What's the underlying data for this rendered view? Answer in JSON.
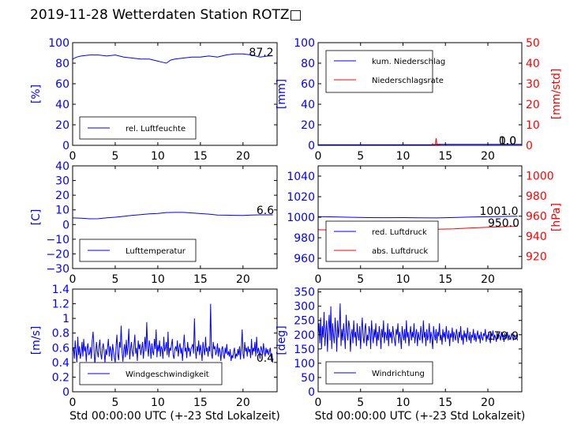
{
  "page": {
    "title": "2019-11-28 Wetterdaten Station ROTZ□"
  },
  "colors": {
    "left_axis": "#0000ff",
    "right_axis": "#ff0000",
    "frame": "#000000"
  },
  "chart_data": [
    {
      "type": "line",
      "xlim": [
        0,
        24
      ],
      "xticks": [
        0,
        5,
        10,
        15,
        20
      ],
      "xlabel": "",
      "ylim": [
        0,
        100
      ],
      "yticks": [
        0,
        20,
        40,
        60,
        80,
        100
      ],
      "ylabel": "[%]",
      "grid": false,
      "legend_position": "lower-left",
      "last_value_label": "87.2",
      "series": [
        {
          "name": "rel. Luftfeuchte",
          "color": "#0000ff",
          "axis": "left",
          "x": [
            0,
            0.5,
            1,
            2,
            3,
            4,
            5,
            6,
            7,
            8,
            9,
            10,
            10.5,
            11,
            11.5,
            12,
            13,
            14,
            15,
            16,
            17,
            18,
            19,
            20,
            21,
            22,
            23,
            23.5
          ],
          "y": [
            84,
            86,
            87,
            88,
            88,
            87,
            88,
            86,
            85,
            84,
            84,
            82,
            81,
            80,
            83,
            84,
            85,
            86,
            86,
            87,
            86,
            88,
            89,
            89,
            88,
            86,
            87,
            87.2
          ]
        }
      ]
    },
    {
      "type": "line",
      "xlim": [
        0,
        24
      ],
      "xticks": [
        0,
        5,
        10,
        15,
        20
      ],
      "xlabel": "",
      "ylim": [
        0,
        100
      ],
      "yticks": [
        0,
        20,
        40,
        60,
        80,
        100
      ],
      "ylabel": "[mm]",
      "y2lim": [
        0,
        50
      ],
      "y2ticks": [
        0,
        10,
        20,
        30,
        40,
        50
      ],
      "y2label": "[mm/std]",
      "grid": false,
      "legend_position": "upper-left",
      "last_value_labels": [
        "1.0",
        "0.0"
      ],
      "series": [
        {
          "name": "kum. Niederschlag",
          "color": "#0000ff",
          "axis": "left",
          "x": [
            0,
            13.5,
            14,
            24
          ],
          "y": [
            0.5,
            0.5,
            1.0,
            1.0
          ]
        },
        {
          "name": "Niederschlagsrate",
          "color": "#ff0000",
          "axis": "right",
          "x": [
            0,
            13.4,
            13.5,
            13.6,
            13.8,
            13.9,
            14.0,
            14.1,
            14.3,
            14.4,
            24
          ],
          "y": [
            0,
            0,
            0.8,
            0,
            0,
            3.5,
            0.4,
            0,
            0.6,
            0,
            0
          ]
        }
      ]
    },
    {
      "type": "line",
      "xlim": [
        0,
        24
      ],
      "xticks": [
        0,
        5,
        10,
        15,
        20
      ],
      "xlabel": "",
      "ylim": [
        -30,
        40
      ],
      "yticks": [
        -30,
        -20,
        -10,
        0,
        10,
        20,
        30,
        40
      ],
      "ylabel": "[C]",
      "grid": false,
      "legend_position": "lower-left",
      "last_value_label": "6.6",
      "series": [
        {
          "name": "Lufttemperatur",
          "color": "#0000ff",
          "axis": "left",
          "x": [
            0,
            1,
            2,
            3,
            4,
            5,
            6,
            7,
            8,
            9,
            10,
            11,
            12,
            13,
            14,
            15,
            16,
            17,
            18,
            19,
            20,
            21,
            22,
            23,
            23.5
          ],
          "y": [
            4.5,
            4.3,
            3.9,
            4.0,
            4.6,
            5.0,
            5.6,
            6.3,
            6.8,
            7.3,
            7.6,
            8.2,
            8.3,
            8.3,
            7.9,
            7.5,
            7.1,
            6.5,
            6.4,
            6.3,
            6.2,
            6.5,
            6.6,
            6.6,
            6.6
          ]
        }
      ]
    },
    {
      "type": "line",
      "xlim": [
        0,
        24
      ],
      "xticks": [
        0,
        5,
        10,
        15,
        20
      ],
      "xlabel": "",
      "ylim": [
        950,
        1050
      ],
      "yticks": [
        960,
        980,
        1000,
        1020,
        1040
      ],
      "ylabel": "",
      "y2lim": [
        908,
        1010
      ],
      "y2ticks": [
        920,
        940,
        960,
        980,
        1000
      ],
      "y2label": "[hPa]",
      "grid": false,
      "legend_position": "lower-left",
      "last_value_labels": [
        "1001.0",
        "950.0"
      ],
      "series": [
        {
          "name": "red. Luftdruck",
          "color": "#0000ff",
          "axis": "left",
          "x": [
            0,
            2,
            4,
            6,
            8,
            10,
            12,
            14,
            16,
            18,
            20,
            22,
            23.5
          ],
          "y": [
            1000.6,
            1000.3,
            999.9,
            999.6,
            999.5,
            999.6,
            999.4,
            999.3,
            999.7,
            1000.2,
            1000.5,
            1000.8,
            1001.0
          ]
        },
        {
          "name": "abs. Luftdruck",
          "color": "#ff0000",
          "axis": "right",
          "x": [
            0,
            2,
            4,
            6,
            8,
            10,
            12,
            14,
            16,
            18,
            20,
            22,
            23.5
          ],
          "y": [
            946.5,
            946.2,
            946.0,
            946.0,
            946.0,
            946.5,
            946.7,
            947.0,
            947.5,
            948.3,
            949.0,
            949.6,
            950.0
          ]
        }
      ]
    },
    {
      "type": "line",
      "xlim": [
        0,
        24
      ],
      "xticks": [
        0,
        5,
        10,
        15,
        20
      ],
      "xlabel": "Std 00:00:00 UTC (+-23 Std Lokalzeit)",
      "ylim": [
        0,
        1.4
      ],
      "yticks": [
        0.0,
        0.2,
        0.4,
        0.6,
        0.8,
        1.0,
        1.2,
        1.4
      ],
      "ylabel": "[m/s]",
      "grid": false,
      "legend_position": "lower-left",
      "last_value_label": "0.4",
      "series": [
        {
          "name": "Windgeschwindigkeit",
          "color": "#0000ff",
          "axis": "left",
          "x_start": 0,
          "x_step": 0.1,
          "y": [
            0.55,
            0.6,
            0.45,
            0.7,
            0.55,
            0.4,
            0.75,
            0.5,
            0.62,
            0.45,
            0.53,
            0.68,
            0.48,
            0.72,
            0.55,
            0.62,
            0.41,
            0.58,
            0.66,
            0.5,
            0.53,
            0.61,
            0.45,
            0.7,
            0.82,
            0.6,
            0.38,
            0.5,
            0.68,
            0.55,
            0.47,
            0.62,
            0.71,
            0.52,
            0.44,
            0.6,
            0.66,
            0.55,
            0.4,
            0.58,
            0.5,
            0.6,
            0.72,
            0.48,
            0.62,
            0.56,
            0.42,
            0.65,
            0.55,
            0.46,
            0.4,
            0.62,
            0.78,
            0.51,
            0.43,
            0.68,
            0.6,
            0.9,
            0.55,
            0.41,
            0.57,
            0.65,
            0.47,
            0.71,
            0.5,
            0.62,
            0.86,
            0.44,
            0.58,
            0.68,
            0.55,
            0.48,
            0.63,
            0.78,
            0.52,
            0.6,
            0.42,
            0.7,
            0.58,
            0.65,
            0.5,
            0.58,
            0.68,
            0.45,
            0.6,
            0.75,
            0.55,
            0.95,
            0.6,
            0.48,
            0.7,
            0.62,
            0.45,
            0.66,
            0.55,
            0.5,
            0.72,
            0.58,
            0.85,
            0.47,
            0.64,
            0.55,
            0.7,
            0.48,
            0.62,
            0.58,
            0.45,
            0.75,
            0.55,
            0.6,
            0.68,
            0.5,
            0.82,
            0.47,
            0.6,
            0.56,
            0.64,
            0.72,
            0.5,
            0.45,
            0.58,
            0.62,
            0.55,
            0.7,
            0.48,
            0.6,
            0.66,
            0.52,
            0.6,
            0.42,
            0.62,
            0.78,
            0.55,
            0.6,
            0.46,
            0.68,
            0.55,
            0.6,
            0.48,
            0.58,
            0.62,
            0.65,
            0.52,
            1.0,
            0.58,
            0.45,
            0.62,
            0.55,
            0.7,
            0.5,
            0.64,
            0.55,
            0.42,
            0.68,
            0.58,
            0.5,
            0.75,
            0.55,
            0.6,
            0.48,
            0.62,
            0.55,
            1.2,
            0.52,
            0.45,
            0.68,
            0.58,
            0.62,
            0.5,
            0.55,
            0.66,
            0.48,
            0.6,
            0.55,
            0.42,
            0.58,
            0.62,
            0.5,
            0.45,
            0.6,
            0.52,
            0.65,
            0.5,
            0.55,
            0.48,
            0.58,
            0.42,
            0.5,
            0.46,
            0.55,
            0.6,
            0.45,
            0.52,
            0.48,
            0.58,
            0.5,
            0.62,
            0.44,
            0.6,
            0.85,
            0.52,
            0.45,
            0.68,
            0.55,
            0.6,
            0.48,
            0.62,
            0.55,
            0.58,
            0.46,
            0.72,
            0.5,
            0.6,
            0.55,
            0.68,
            0.48,
            0.75,
            0.52,
            0.6,
            0.55,
            0.45,
            0.62,
            0.58,
            0.5,
            0.66,
            0.55,
            0.48,
            0.6,
            0.52,
            0.58,
            0.5,
            0.55,
            0.6,
            0.46,
            0.52,
            0.4
          ]
        }
      ]
    },
    {
      "type": "line",
      "xlim": [
        0,
        24
      ],
      "xticks": [
        0,
        5,
        10,
        15,
        20
      ],
      "xlabel": "Std 00:00:00 UTC (+-23 Std Lokalzeit)",
      "ylim": [
        0,
        360
      ],
      "yticks": [
        0,
        50,
        100,
        150,
        200,
        250,
        300,
        350
      ],
      "ylabel": "[deg]",
      "grid": false,
      "legend_position": "lower-left",
      "last_value_label": "179.9",
      "series": [
        {
          "name": "Windrichtung",
          "color": "#0000ff",
          "axis": "left",
          "x_start": 0,
          "x_step": 0.1,
          "y": [
            200,
            240,
            170,
            260,
            150,
            230,
            190,
            280,
            160,
            210,
            250,
            140,
            220,
            270,
            180,
            300,
            150,
            240,
            200,
            170,
            260,
            210,
            140,
            250,
            190,
            230,
            310,
            160,
            220,
            180,
            240,
            200,
            150,
            270,
            210,
            180,
            250,
            230,
            140,
            200,
            220,
            170,
            250,
            190,
            210,
            160,
            240,
            200,
            180,
            230,
            150,
            210,
            260,
            190,
            170,
            220,
            240,
            160,
            200,
            180,
            230,
            210,
            150,
            250,
            200,
            170,
            220,
            190,
            240,
            160,
            210,
            180,
            230,
            200,
            150,
            220,
            190,
            250,
            170,
            210,
            200,
            180,
            240,
            160,
            220,
            190,
            210,
            170,
            230,
            200,
            180,
            160,
            220,
            200,
            240,
            170,
            210,
            190,
            150,
            230,
            200,
            180,
            220,
            170,
            250,
            190,
            210,
            160,
            200,
            230,
            180,
            210,
            190,
            240,
            170,
            200,
            220,
            160,
            210,
            190,
            180,
            230,
            200,
            170,
            250,
            190,
            210,
            160,
            220,
            180,
            200,
            240,
            170,
            210,
            190,
            150,
            230,
            200,
            180,
            220,
            170,
            210,
            195,
            240,
            180,
            200,
            165,
            220,
            190,
            210,
            175,
            230,
            200,
            185,
            215,
            160,
            205,
            190,
            225,
            175,
            210,
            195,
            180,
            220,
            200,
            170,
            210,
            190,
            230,
            180,
            200,
            165,
            215,
            190,
            205,
            175,
            225,
            195,
            180,
            210,
            170,
            200,
            190,
            220,
            180,
            205,
            175,
            195,
            215,
            185,
            200,
            170,
            210,
            190,
            180,
            205,
            195,
            220,
            175,
            200,
            185,
            210,
            190,
            170,
            205,
            195,
            215,
            180,
            200,
            190,
            175,
            210,
            185,
            200,
            195,
            180,
            210,
            190,
            200,
            175,
            205,
            185,
            195,
            210,
            180,
            200,
            190,
            185,
            205,
            195,
            180,
            200,
            190,
            185,
            195,
            180
          ]
        }
      ]
    }
  ]
}
